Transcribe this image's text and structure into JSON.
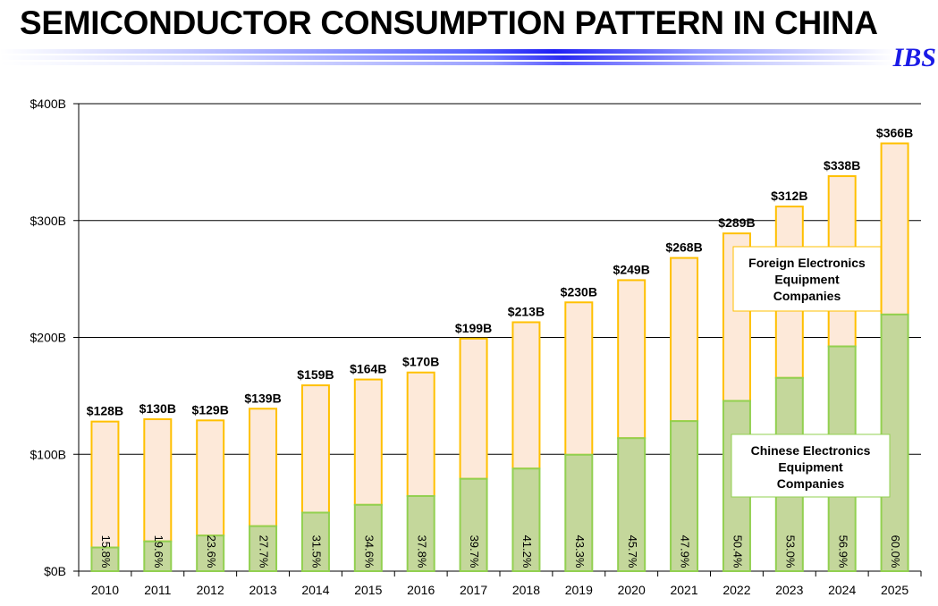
{
  "header": {
    "title": "SEMICONDUCTOR CONSUMPTION PATTERN IN CHINA",
    "logo": "IBS"
  },
  "chart_data": {
    "type": "bar",
    "stacked": true,
    "title": "",
    "xlabel": "",
    "ylabel": "",
    "ylim": [
      0,
      400
    ],
    "y_ticks": [
      "$0B",
      "$100B",
      "$200B",
      "$300B",
      "$400B"
    ],
    "grid": true,
    "categories": [
      "2010",
      "2011",
      "2012",
      "2013",
      "2014",
      "2015",
      "2016",
      "2017",
      "2018",
      "2019",
      "2020",
      "2021",
      "2022",
      "2023",
      "2024",
      "2025"
    ],
    "totals": [
      128,
      130,
      129,
      139,
      159,
      164,
      170,
      199,
      213,
      230,
      249,
      268,
      289,
      312,
      338,
      366
    ],
    "total_labels": [
      "$128B",
      "$130B",
      "$129B",
      "$139B",
      "$159B",
      "$164B",
      "$170B",
      "$199B",
      "$213B",
      "$230B",
      "$249B",
      "$268B",
      "$289B",
      "$312B",
      "$338B",
      "$366B"
    ],
    "chinese_share_pct": [
      15.8,
      19.6,
      23.6,
      27.7,
      31.5,
      34.6,
      37.8,
      39.7,
      41.2,
      43.3,
      45.7,
      47.9,
      50.4,
      53.0,
      56.9,
      60.0
    ],
    "share_labels": [
      "15.8%",
      "19.6%",
      "23.6%",
      "27.7%",
      "31.5%",
      "34.6%",
      "37.8%",
      "39.7%",
      "41.2%",
      "43.3%",
      "45.7%",
      "47.9%",
      "50.4%",
      "53.0%",
      "56.9%",
      "60.0%"
    ],
    "series": [
      {
        "name": "Chinese Electronics Equipment Companies",
        "fill": "#c4d79b",
        "stroke": "#92d050"
      },
      {
        "name": "Foreign Electronics Equipment Companies",
        "fill": "#fde9d9",
        "stroke": "#ffc000"
      }
    ],
    "annotations": [
      {
        "series": 1,
        "lines": [
          "Foreign Electronics",
          "Equipment",
          "Companies"
        ],
        "border": "#ffc000"
      },
      {
        "series": 0,
        "lines": [
          "Chinese Electronics",
          "Equipment",
          "Companies"
        ],
        "border": "#92d050"
      }
    ]
  }
}
